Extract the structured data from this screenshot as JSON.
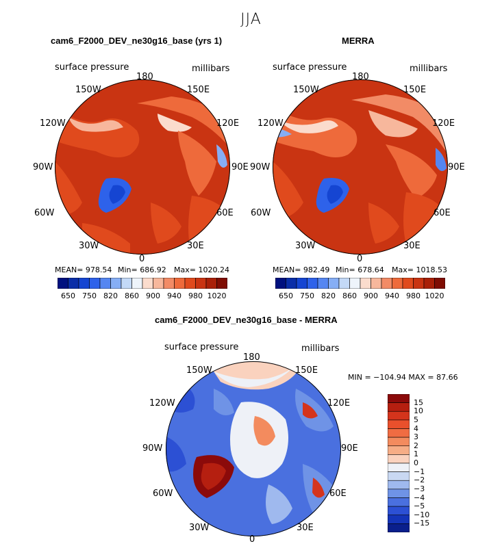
{
  "figure": {
    "title": "JJA"
  },
  "chart_data": [
    {
      "type": "heatmap",
      "projection": "north-polar-stereographic",
      "title": "cam6_F2000_DEV_ne30g16_base (yrs 1)",
      "variable": "surface pressure",
      "units": "millibars",
      "longitude_labels": [
        "180",
        "150E",
        "120E",
        "90E",
        "60E",
        "30E",
        "0",
        "30W",
        "60W",
        "90W",
        "120W",
        "150W"
      ],
      "stats": {
        "mean": "MEAN= 978.54",
        "min": "Min= 686.92",
        "max": "Max= 1020.24"
      },
      "colorbar": {
        "orientation": "horizontal",
        "tick_labels": [
          "650",
          "750",
          "820",
          "860",
          "900",
          "940",
          "980",
          "1020"
        ],
        "colors": [
          "#00117f",
          "#0a2ea8",
          "#1545d2",
          "#2e62ea",
          "#5586f1",
          "#86aef5",
          "#c3d9f7",
          "#eef4fb",
          "#fbdccd",
          "#f7b79c",
          "#f28b66",
          "#ee6a3b",
          "#e04a1d",
          "#c93412",
          "#a92008",
          "#7f0d03"
        ]
      }
    },
    {
      "type": "heatmap",
      "projection": "north-polar-stereographic",
      "title": "MERRA",
      "variable": "surface pressure",
      "units": "millibars",
      "longitude_labels": [
        "180",
        "150E",
        "120E",
        "90E",
        "60E",
        "30E",
        "0",
        "30W",
        "60W",
        "90W",
        "120W",
        "150W"
      ],
      "stats": {
        "mean": "MEAN= 982.49",
        "min": "Min= 678.64",
        "max": "Max= 1018.53"
      },
      "colorbar": {
        "orientation": "horizontal",
        "tick_labels": [
          "650",
          "750",
          "820",
          "860",
          "900",
          "940",
          "980",
          "1020"
        ],
        "colors": [
          "#00117f",
          "#0a2ea8",
          "#1545d2",
          "#2e62ea",
          "#5586f1",
          "#86aef5",
          "#c3d9f7",
          "#eef4fb",
          "#fbdccd",
          "#f7b79c",
          "#f28b66",
          "#ee6a3b",
          "#e04a1d",
          "#c93412",
          "#a92008",
          "#7f0d03"
        ]
      }
    },
    {
      "type": "heatmap",
      "projection": "north-polar-stereographic",
      "title": "cam6_F2000_DEV_ne30g16_base - MERRA",
      "variable": "surface pressure",
      "units": "millibars",
      "longitude_labels": [
        "180",
        "150E",
        "120E",
        "90E",
        "60E",
        "30E",
        "0",
        "30W",
        "60W",
        "90W",
        "120W",
        "150W"
      ],
      "stats": {
        "minmax": "MIN = −104.94 MAX =  87.66"
      },
      "colorbar": {
        "orientation": "vertical",
        "tick_labels": [
          "15",
          "10",
          "5",
          "4",
          "3",
          "2",
          "1",
          "0",
          "−1",
          "−2",
          "−3",
          "−4",
          "−5",
          "−10",
          "−15"
        ],
        "colors": [
          "#8b0a0a",
          "#b51f10",
          "#d4341c",
          "#e9502c",
          "#f06c42",
          "#f38b5e",
          "#f6ad86",
          "#fad2be",
          "#eef1f7",
          "#c9d8f2",
          "#9fb9ee",
          "#6f93e6",
          "#4a70df",
          "#2c50d4",
          "#1434b8",
          "#0a1f8c"
        ]
      }
    }
  ]
}
